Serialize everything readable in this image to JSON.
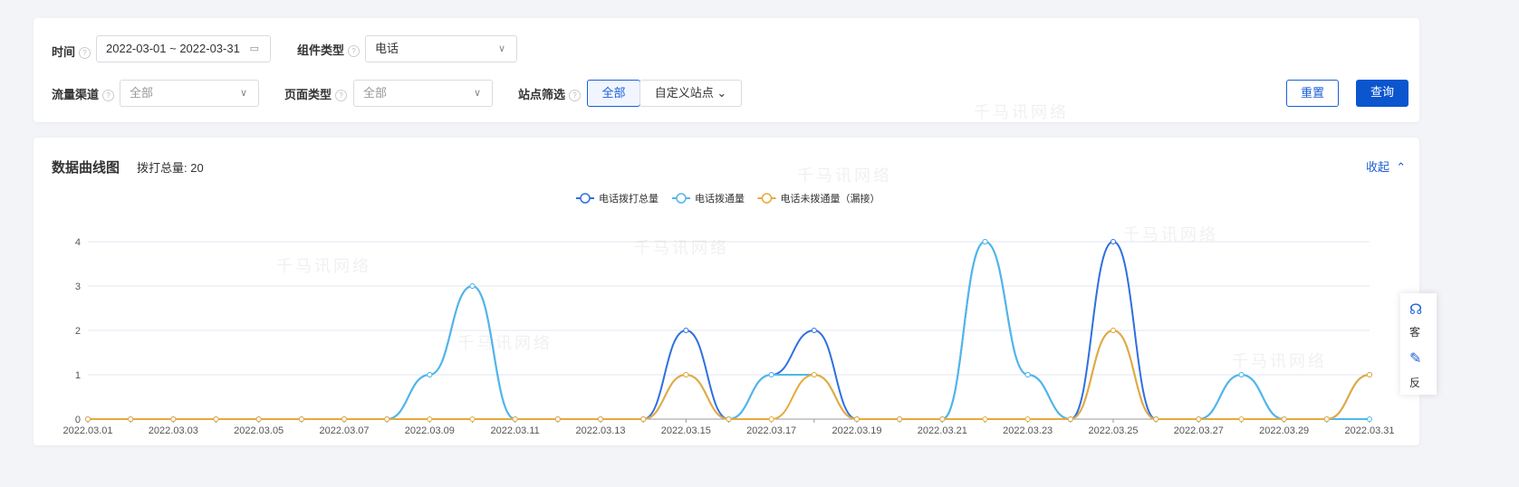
{
  "filters": {
    "time_label": "时间",
    "time_value": "2022-03-01 ~ 2022-03-31",
    "component_label": "组件类型",
    "component_value": "电话",
    "channel_label": "流量渠道",
    "channel_placeholder": "全部",
    "page_type_label": "页面类型",
    "page_type_placeholder": "全部",
    "site_label": "站点筛选",
    "site_all": "全部",
    "site_custom": "自定义站点",
    "reset": "重置",
    "query": "查询"
  },
  "chart_card": {
    "title": "数据曲线图",
    "total_label": "拨打总量: 20",
    "collapse": "收起"
  },
  "side_panel": {
    "service": "客",
    "feedback": "反"
  },
  "watermark": "千马讯网络",
  "chart_data": {
    "type": "line",
    "x": [
      "2022.03.01",
      "2022.03.02",
      "2022.03.03",
      "2022.03.04",
      "2022.03.05",
      "2022.03.06",
      "2022.03.07",
      "2022.03.08",
      "2022.03.09",
      "2022.03.10",
      "2022.03.11",
      "2022.03.12",
      "2022.03.13",
      "2022.03.14",
      "2022.03.15",
      "2022.03.16",
      "2022.03.17",
      "2022.03.18",
      "2022.03.19",
      "2022.03.20",
      "2022.03.21",
      "2022.03.22",
      "2022.03.23",
      "2022.03.24",
      "2022.03.25",
      "2022.03.26",
      "2022.03.27",
      "2022.03.28",
      "2022.03.29",
      "2022.03.30",
      "2022.03.31"
    ],
    "xtick_labels": [
      "2022.03.01",
      "2022.03.03",
      "2022.03.05",
      "2022.03.07",
      "2022.03.09",
      "2022.03.11",
      "2022.03.13",
      "2022.03.15",
      "2022.03.17",
      "2022.03.19",
      "2022.03.21",
      "2022.03.23",
      "2022.03.25",
      "2022.03.27",
      "2022.03.29",
      "2022.03.31"
    ],
    "yticks": [
      "0",
      "1",
      "2",
      "3",
      "4"
    ],
    "ylim": [
      0,
      4
    ],
    "grid": true,
    "legend_position": "top-center",
    "series": [
      {
        "name": "电话拨打总量",
        "color": "#2f6fe0",
        "values": [
          0,
          0,
          0,
          0,
          0,
          0,
          0,
          0,
          1,
          3,
          0,
          0,
          0,
          0,
          2,
          0,
          1,
          2,
          0,
          0,
          0,
          4,
          1,
          0,
          4,
          0,
          0,
          1,
          0,
          0,
          1
        ]
      },
      {
        "name": "电话拨通量",
        "color": "#4fb8ea",
        "values": [
          0,
          0,
          0,
          0,
          0,
          0,
          0,
          0,
          1,
          3,
          0,
          0,
          0,
          0,
          1,
          0,
          1,
          1,
          0,
          0,
          0,
          4,
          1,
          0,
          2,
          0,
          0,
          1,
          0,
          0,
          0
        ]
      },
      {
        "name": "电话未拨通量（漏接）",
        "color": "#e8a93a",
        "values": [
          0,
          0,
          0,
          0,
          0,
          0,
          0,
          0,
          0,
          0,
          0,
          0,
          0,
          0,
          1,
          0,
          0,
          1,
          0,
          0,
          0,
          0,
          0,
          0,
          2,
          0,
          0,
          0,
          0,
          0,
          1
        ]
      }
    ]
  }
}
